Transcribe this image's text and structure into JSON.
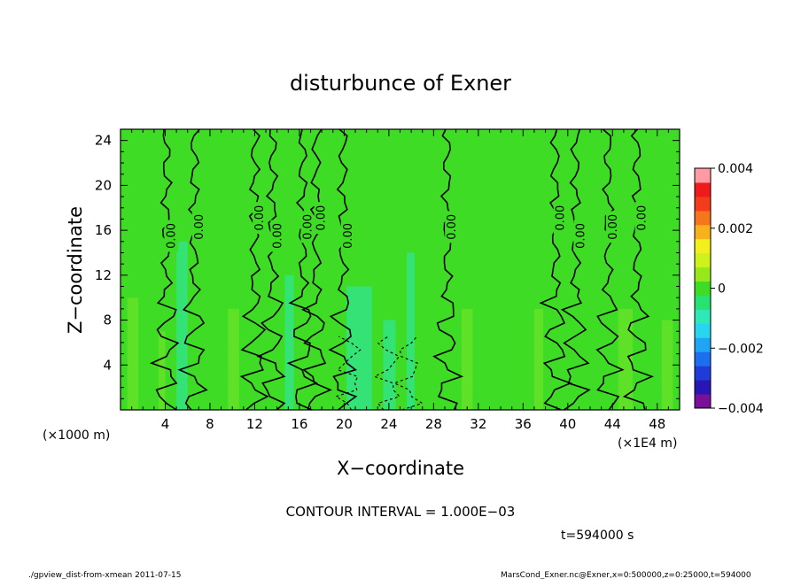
{
  "chart_data": {
    "type": "heatmap",
    "title": "disturbunce of Exner",
    "xlabel": "X−coordinate",
    "ylabel": "Z−coordinate",
    "x_unit_left": "(×1000 m)",
    "x_unit_right": "(×1E4 m)",
    "x_ticks": [
      "4",
      "8",
      "12",
      "16",
      "20",
      "24",
      "28",
      "32",
      "36",
      "40",
      "44",
      "48"
    ],
    "y_ticks": [
      "4",
      "8",
      "12",
      "16",
      "20",
      "24"
    ],
    "xlim": [
      0,
      50
    ],
    "ylim": [
      0,
      25
    ],
    "contour_interval_text": "CONTOUR INTERVAL = 1.000E−03",
    "time_text": "t=594000 s",
    "footer_left": "./gpview_dist-from-xmean  2011-07-15",
    "footer_right": "MarsCond_Exner.nc@Exner,x=0:500000,z=0:25000,t=594000",
    "colorbar": {
      "min": -0.004,
      "max": 0.004,
      "tick_labels": [
        "0.004",
        "0.002",
        "0",
        "−0.002",
        "−0.004"
      ],
      "tick_values": [
        0.004,
        0.002,
        0,
        -0.002,
        -0.004
      ],
      "colors": [
        "#7a109a",
        "#2a16b4",
        "#1f3cd9",
        "#1e6ef0",
        "#1ea6f5",
        "#27d5ee",
        "#2ee8b8",
        "#27e270",
        "#3fdc25",
        "#97e81b",
        "#cdf21c",
        "#f3ef1b",
        "#f7b21b",
        "#f7761b",
        "#f23c1b",
        "#ef1b1b",
        "#ff9aa2"
      ]
    },
    "field": {
      "background": "#3fdc25",
      "near_zero_positive": "#78e628",
      "near_zero_negative": "#2ee8b8",
      "contour_label": "0.00",
      "solid_contour_x": [
        4.1,
        6.6,
        12.0,
        13.6,
        16.3,
        17.5,
        19.9,
        29.2,
        38.9,
        40.7,
        43.6,
        46.2
      ],
      "dashed_contour_x": [
        20.5,
        24.0,
        25.8
      ]
    }
  }
}
